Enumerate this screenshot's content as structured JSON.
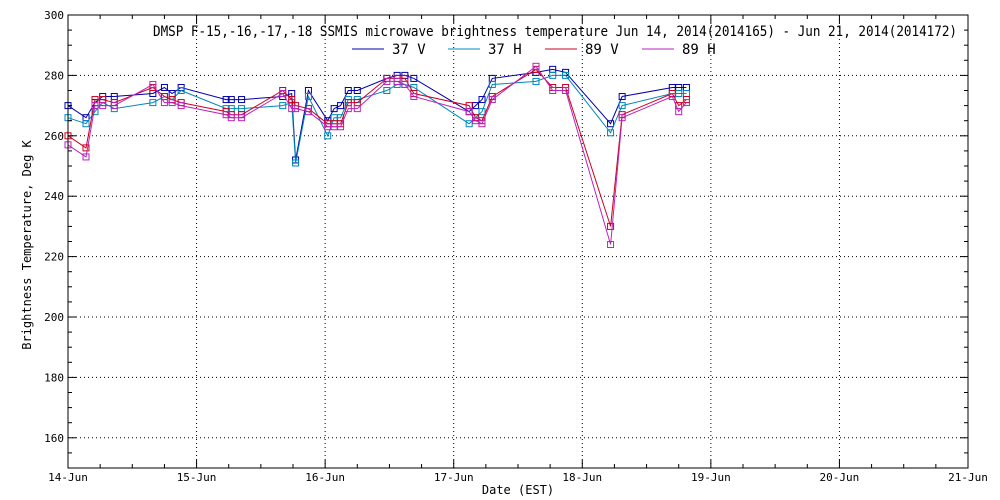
{
  "chart_data": {
    "type": "line",
    "title": "DMSP F-15,-16,-17,-18 SSMIS microwave brightness temperature Jun 14, 2014(2014165) - Jun 21, 2014(2014172)",
    "xlabel": "Date (EST)",
    "ylabel": "Brightness Temperature, Deg K",
    "xlim": [
      0,
      7
    ],
    "ylim": [
      150,
      300
    ],
    "grid": true,
    "legend_position": "top-center",
    "x_ticks": [
      {
        "value": 0,
        "label": "14-Jun"
      },
      {
        "value": 1,
        "label": "15-Jun"
      },
      {
        "value": 2,
        "label": "16-Jun"
      },
      {
        "value": 3,
        "label": "17-Jun"
      },
      {
        "value": 4,
        "label": "18-Jun"
      },
      {
        "value": 5,
        "label": "19-Jun"
      },
      {
        "value": 6,
        "label": "20-Jun"
      },
      {
        "value": 7,
        "label": "21-Jun"
      }
    ],
    "y_ticks": [
      160,
      180,
      200,
      220,
      240,
      260,
      280,
      300
    ],
    "series": [
      {
        "name": "37 V",
        "color": "#0000aa",
        "x": [
          0,
          0.14,
          0.21,
          0.27,
          0.36,
          0.66,
          0.75,
          0.81,
          0.88,
          1.23,
          1.27,
          1.35,
          1.67,
          1.74,
          1.77,
          1.87,
          2.02,
          2.07,
          2.12,
          2.18,
          2.25,
          2.48,
          2.56,
          2.62,
          2.69,
          3.12,
          3.17,
          3.22,
          3.3,
          3.64,
          3.77,
          3.87,
          4.22,
          4.31,
          4.7,
          4.75,
          4.81
        ],
        "values": [
          270,
          266,
          271,
          273,
          273,
          274,
          276,
          274,
          276,
          272,
          272,
          272,
          273,
          274,
          252,
          275,
          265,
          269,
          270,
          275,
          275,
          279,
          280,
          280,
          279,
          268,
          270,
          272,
          279,
          281,
          282,
          281,
          264,
          273,
          276,
          276,
          276
        ]
      },
      {
        "name": "37 H",
        "color": "#0088bb",
        "x": [
          0,
          0.14,
          0.21,
          0.27,
          0.36,
          0.66,
          0.75,
          0.81,
          0.88,
          1.23,
          1.27,
          1.35,
          1.67,
          1.74,
          1.77,
          1.87,
          2.02,
          2.07,
          2.12,
          2.18,
          2.25,
          2.48,
          2.56,
          2.62,
          2.69,
          3.12,
          3.17,
          3.22,
          3.3,
          3.64,
          3.77,
          3.87,
          4.22,
          4.31,
          4.7,
          4.75,
          4.81
        ],
        "values": [
          266,
          264,
          268,
          271,
          269,
          271,
          273,
          272,
          275,
          269,
          269,
          269,
          270,
          271,
          251,
          273,
          260,
          266,
          266,
          272,
          272,
          275,
          277,
          277,
          276,
          264,
          266,
          268,
          277,
          278,
          280,
          280,
          261,
          270,
          274,
          274,
          274
        ]
      },
      {
        "name": "89 V",
        "color": "#cc0022",
        "x": [
          0,
          0.14,
          0.21,
          0.27,
          0.36,
          0.66,
          0.75,
          0.81,
          0.88,
          1.23,
          1.27,
          1.35,
          1.67,
          1.74,
          1.77,
          1.87,
          2.02,
          2.07,
          2.12,
          2.18,
          2.25,
          2.48,
          2.56,
          2.62,
          2.69,
          3.12,
          3.17,
          3.22,
          3.3,
          3.64,
          3.77,
          3.87,
          4.22,
          4.31,
          4.7,
          4.75,
          4.81
        ],
        "values": [
          260,
          256,
          272,
          272,
          271,
          276,
          273,
          272,
          271,
          268,
          267,
          267,
          275,
          272,
          270,
          269,
          264,
          264,
          264,
          271,
          271,
          279,
          279,
          279,
          274,
          270,
          266,
          265,
          273,
          282,
          276,
          276,
          230,
          267,
          274,
          270,
          272
        ]
      },
      {
        "name": "89 H",
        "color": "#bb22bb",
        "x": [
          0,
          0.14,
          0.21,
          0.27,
          0.36,
          0.66,
          0.75,
          0.81,
          0.88,
          1.23,
          1.27,
          1.35,
          1.67,
          1.74,
          1.77,
          1.87,
          2.02,
          2.07,
          2.12,
          2.18,
          2.25,
          2.48,
          2.56,
          2.62,
          2.69,
          3.12,
          3.17,
          3.22,
          3.3,
          3.64,
          3.77,
          3.87,
          4.22,
          4.31,
          4.7,
          4.75,
          4.81
        ],
        "values": [
          257,
          253,
          270,
          270,
          270,
          277,
          271,
          271,
          270,
          267,
          266,
          266,
          274,
          269,
          269,
          268,
          263,
          263,
          263,
          269,
          269,
          278,
          278,
          277,
          273,
          268,
          265,
          264,
          272,
          283,
          275,
          275,
          224,
          266,
          273,
          268,
          271
        ]
      }
    ]
  }
}
